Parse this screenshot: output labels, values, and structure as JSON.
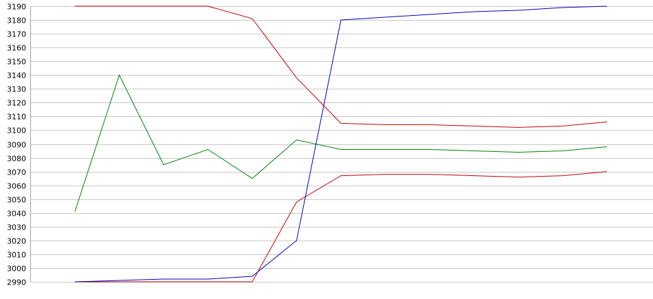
{
  "chart_data": {
    "type": "line",
    "title": "",
    "xlabel": "",
    "ylabel": "",
    "ylim": [
      2990,
      3190
    ],
    "yticks": [
      2990,
      3000,
      3010,
      3020,
      3030,
      3040,
      3050,
      3060,
      3070,
      3080,
      3090,
      3100,
      3110,
      3120,
      3130,
      3140,
      3150,
      3160,
      3170,
      3180,
      3190
    ],
    "x": [
      1,
      2,
      3,
      4,
      5,
      6,
      7,
      8,
      9,
      10,
      11,
      12,
      13
    ],
    "grid": "horizontal",
    "legend": "none",
    "series": [
      {
        "color": "#c00000",
        "values": [
          3190,
          3190,
          3190,
          3190,
          3181,
          3138,
          3105,
          3104,
          3104,
          3103,
          3102,
          3103,
          3106
        ]
      },
      {
        "color": "#c00000",
        "values": [
          2990,
          2990,
          2990,
          2990,
          2990,
          3048,
          3067,
          3068,
          3068,
          3067,
          3066,
          3067,
          3070
        ]
      },
      {
        "color": "#008000",
        "values": [
          3041,
          3140,
          3075,
          3086,
          3065,
          3093,
          3086,
          3086,
          3086,
          3085,
          3084,
          3085,
          3088
        ]
      },
      {
        "color": "#0000c0",
        "values": [
          2990,
          2991,
          2992,
          2992,
          2994,
          3020,
          3180,
          3182,
          3184,
          3186,
          3187,
          3189,
          3190
        ]
      }
    ]
  }
}
